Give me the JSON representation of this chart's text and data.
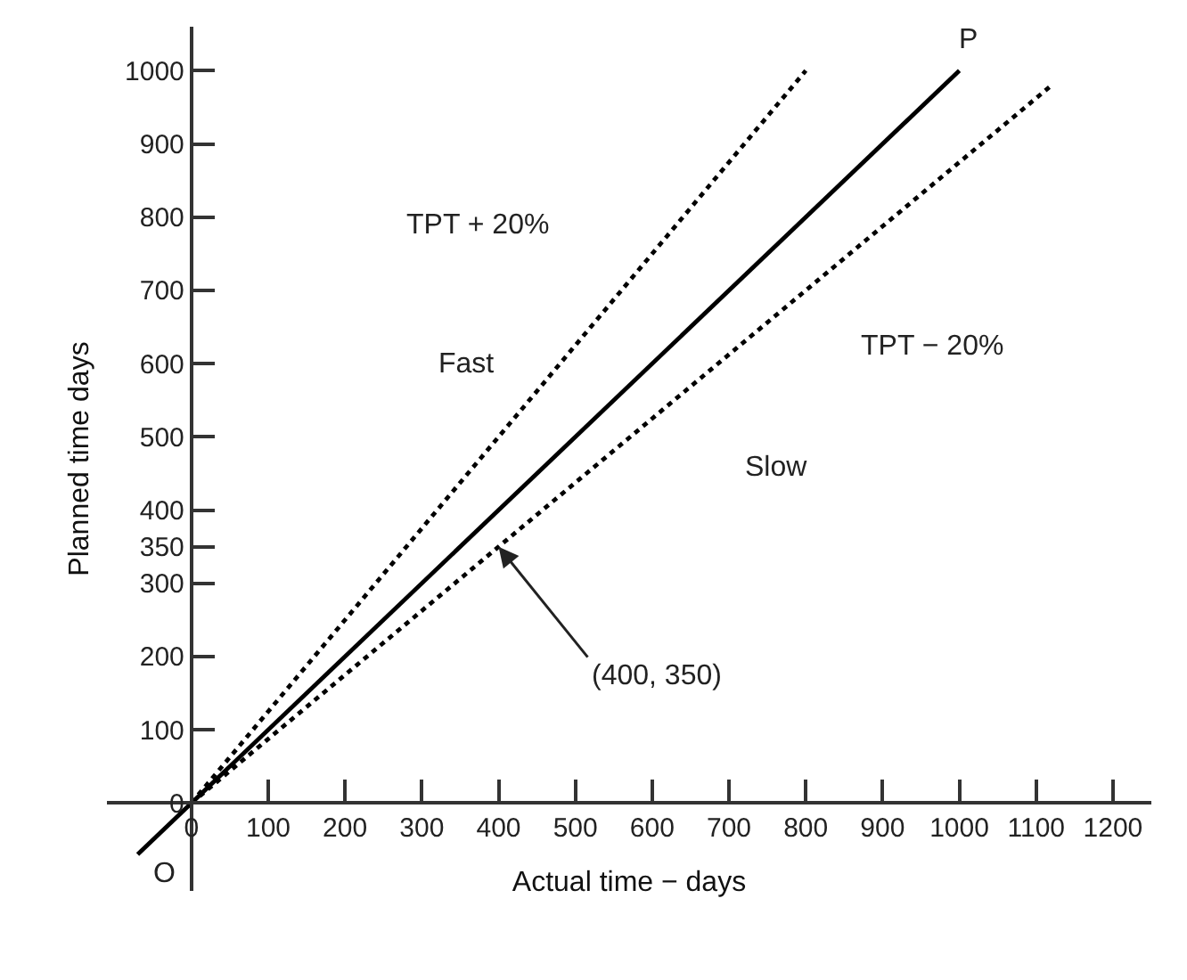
{
  "chart_data": {
    "type": "line",
    "xlabel": "Actual time − days",
    "ylabel": "Planned time days",
    "series": [
      {
        "color": "#000000",
        "x": [
          -70,
          1000
        ],
        "values": [
          -70,
          1000
        ],
        "line_style": "solid"
      },
      {
        "color": "#000000",
        "x": [
          0,
          800
        ],
        "values": [
          0,
          1000
        ],
        "line_style": "dotted"
      },
      {
        "color": "#000000",
        "x": [
          0,
          1120
        ],
        "values": [
          0,
          980
        ],
        "line_style": "dotted"
      }
    ],
    "xlim": [
      -110,
      1250
    ],
    "ylim": [
      -120,
      1060
    ],
    "xticks": [
      0,
      100,
      200,
      300,
      400,
      500,
      600,
      700,
      800,
      900,
      1000,
      1100,
      1200
    ],
    "yticks": [
      0,
      100,
      200,
      300,
      350,
      400,
      500,
      600,
      700,
      800,
      900,
      1000
    ],
    "legend": false,
    "marker": "none",
    "annotations": [
      "P",
      "O",
      "TPT + 20%",
      "Fast",
      "TPT − 20%",
      "Slow",
      {
        "text": "(400, 350)",
        "x": 400,
        "y": 350
      }
    ]
  }
}
